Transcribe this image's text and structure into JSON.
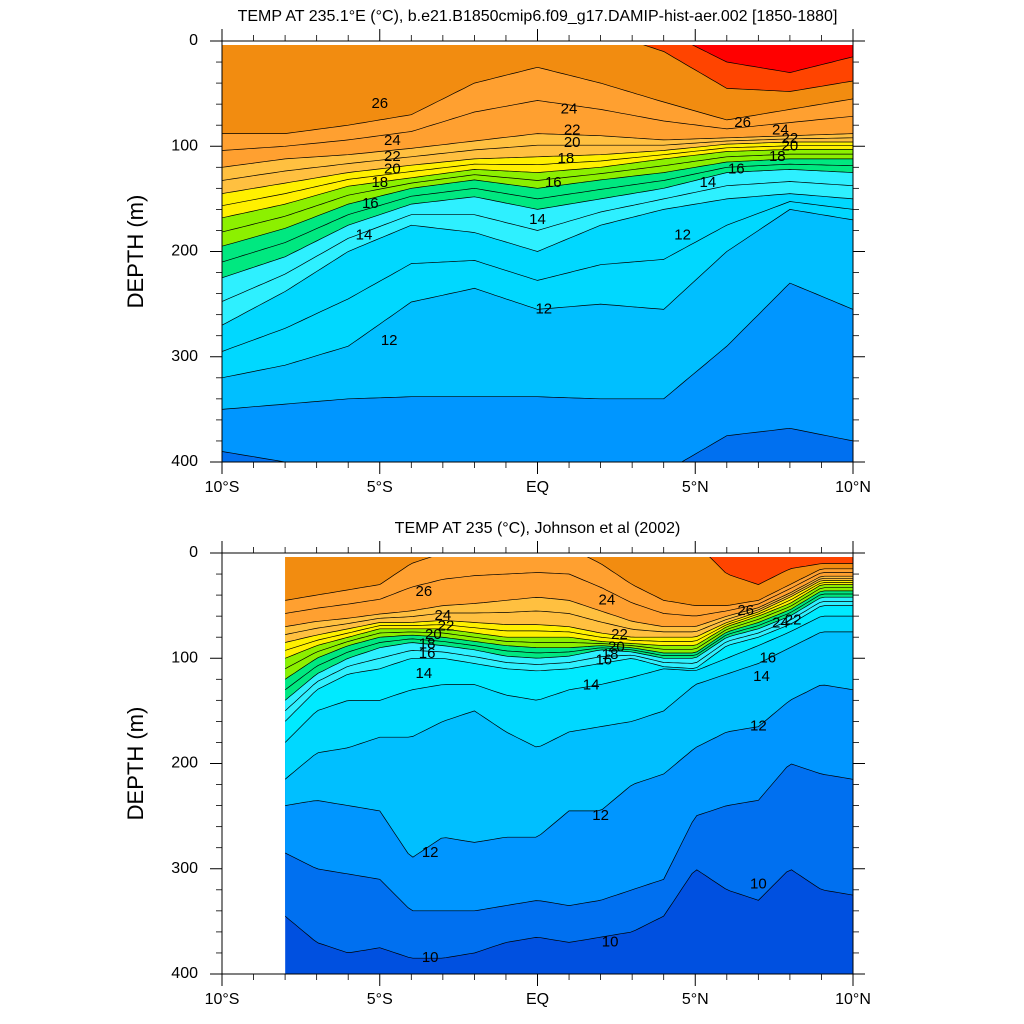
{
  "chart_data": [
    {
      "type": "heatmap",
      "title": "TEMP AT 235.1°E (°C), b.e21.B1850cmip6.f09_g17.DAMIP-hist-aer.002 [1850-1880]",
      "ylabel": "DEPTH (m)",
      "xlabel": "",
      "x_tick_labels": [
        "10°S",
        "5°S",
        "EQ",
        "5°N",
        "10°N"
      ],
      "x_tick_values": [
        -10,
        -5,
        0,
        5,
        10
      ],
      "y_tick_labels": [
        "0",
        "100",
        "200",
        "300",
        "400"
      ],
      "y_tick_values": [
        0,
        100,
        200,
        300,
        400
      ],
      "xlim": [
        -10,
        10
      ],
      "ylim": [
        400,
        0
      ],
      "data_x_range": [
        -10,
        10
      ],
      "contour_interval": 1,
      "bands": [
        {
          "t": 8,
          "color": "#0050e0"
        },
        {
          "t": 9,
          "color": "#0070f0"
        },
        {
          "t": 10,
          "color": "#0096ff"
        },
        {
          "t": 11,
          "color": "#00bfff"
        },
        {
          "t": 12,
          "color": "#00d8ff"
        },
        {
          "t": 13,
          "color": "#00eaff"
        },
        {
          "t": 14,
          "color": "#2ef0ff"
        },
        {
          "t": 15,
          "color": "#00f8e0"
        },
        {
          "t": 16,
          "color": "#00e880"
        },
        {
          "t": 17,
          "color": "#00e800"
        },
        {
          "t": 18,
          "color": "#8cf000"
        },
        {
          "t": 19,
          "color": "#e6f000"
        },
        {
          "t": 20,
          "color": "#fff000"
        },
        {
          "t": 21,
          "color": "#ffd84a"
        },
        {
          "t": 22,
          "color": "#ffc040"
        },
        {
          "t": 23,
          "color": "#ffac38"
        },
        {
          "t": 24,
          "color": "#ffa030"
        },
        {
          "t": 25,
          "color": "#ff9a2a"
        },
        {
          "t": 26,
          "color": "#f28c10"
        },
        {
          "t": 27,
          "color": "#ff4400"
        },
        {
          "t": 28,
          "color": "#ff0000"
        }
      ],
      "isotherm_depths_m": {
        "x": [
          -10,
          -8,
          -6,
          -4,
          -2,
          0,
          2,
          4,
          6,
          8,
          10
        ],
        "10": [
          390,
          400,
          410,
          410,
          410,
          410,
          410,
          410,
          375,
          368,
          380
        ],
        "11": [
          350,
          345,
          340,
          338,
          338,
          338,
          340,
          340,
          290,
          230,
          255
        ],
        "12": [
          320,
          308,
          290,
          248,
          235,
          255,
          250,
          255,
          200,
          160,
          170
        ],
        "14": [
          270,
          238,
          200,
          175,
          182,
          200,
          175,
          160,
          150,
          145,
          150
        ],
        "16": [
          225,
          205,
          175,
          155,
          148,
          160,
          150,
          140,
          125,
          122,
          125
        ],
        "18": [
          195,
          178,
          155,
          140,
          132,
          140,
          132,
          125,
          115,
          112,
          112
        ],
        "20": [
          168,
          155,
          138,
          130,
          122,
          125,
          120,
          112,
          105,
          103,
          103
        ],
        "22": [
          145,
          135,
          125,
          118,
          112,
          110,
          108,
          104,
          98,
          96,
          96
        ],
        "24": [
          120,
          112,
          108,
          102,
          95,
          88,
          90,
          94,
          92,
          90,
          88
        ],
        "26": [
          88,
          88,
          80,
          70,
          40,
          25,
          40,
          58,
          75,
          65,
          55
        ],
        "27": [
          -10,
          -10,
          -10,
          -10,
          -10,
          -10,
          -10,
          10,
          45,
          48,
          38
        ],
        "28": [
          -10,
          -10,
          -10,
          -10,
          -10,
          -10,
          -10,
          -10,
          20,
          30,
          15
        ]
      },
      "contour_labels": [
        {
          "text": "26",
          "x": -5,
          "depth": 60
        },
        {
          "text": "24",
          "x": -4.6,
          "depth": 95
        },
        {
          "text": "22",
          "x": -4.6,
          "depth": 110
        },
        {
          "text": "20",
          "x": -4.6,
          "depth": 122
        },
        {
          "text": "18",
          "x": -5,
          "depth": 135
        },
        {
          "text": "16",
          "x": -5.3,
          "depth": 155
        },
        {
          "text": "14",
          "x": -5.5,
          "depth": 185
        },
        {
          "text": "12",
          "x": -4.7,
          "depth": 285
        },
        {
          "text": "24",
          "x": 1,
          "depth": 65
        },
        {
          "text": "22",
          "x": 1.1,
          "depth": 85
        },
        {
          "text": "20",
          "x": 1.1,
          "depth": 97
        },
        {
          "text": "18",
          "x": 0.9,
          "depth": 112
        },
        {
          "text": "16",
          "x": 0.5,
          "depth": 135
        },
        {
          "text": "14",
          "x": 0,
          "depth": 170
        },
        {
          "text": "12",
          "x": 0.2,
          "depth": 255
        },
        {
          "text": "12",
          "x": 4.6,
          "depth": 185
        },
        {
          "text": "26",
          "x": 6.5,
          "depth": 78
        },
        {
          "text": "24",
          "x": 7.7,
          "depth": 85
        },
        {
          "text": "22",
          "x": 8.0,
          "depth": 93
        },
        {
          "text": "20",
          "x": 8.0,
          "depth": 100
        },
        {
          "text": "18",
          "x": 7.6,
          "depth": 110
        },
        {
          "text": "16",
          "x": 6.3,
          "depth": 122
        },
        {
          "text": "14",
          "x": 5.4,
          "depth": 135
        }
      ]
    },
    {
      "type": "heatmap",
      "title": "TEMP AT 235 (°C), Johnson et al (2002)",
      "ylabel": "DEPTH (m)",
      "xlabel": "",
      "x_tick_labels": [
        "10°S",
        "5°S",
        "EQ",
        "5°N",
        "10°N"
      ],
      "x_tick_values": [
        -10,
        -5,
        0,
        5,
        10
      ],
      "y_tick_labels": [
        "0",
        "100",
        "200",
        "300",
        "400"
      ],
      "y_tick_values": [
        0,
        100,
        200,
        300,
        400
      ],
      "xlim": [
        -10,
        10
      ],
      "ylim": [
        400,
        0
      ],
      "data_x_range": [
        -8,
        10
      ],
      "contour_interval": 1,
      "isotherm_depths_m": {
        "x": [
          -8,
          -7,
          -6,
          -5,
          -4,
          -3,
          -2,
          -1,
          0,
          1,
          2,
          3,
          4,
          5,
          6,
          7,
          8,
          9,
          10
        ],
        "9": [
          345,
          370,
          380,
          375,
          385,
          385,
          380,
          370,
          365,
          370,
          365,
          360,
          345,
          300,
          320,
          330,
          300,
          320,
          325
        ],
        "10": [
          285,
          300,
          305,
          310,
          340,
          340,
          340,
          335,
          330,
          335,
          330,
          320,
          310,
          250,
          240,
          235,
          200,
          210,
          215
        ],
        "11": [
          240,
          235,
          240,
          245,
          290,
          270,
          275,
          270,
          270,
          245,
          245,
          220,
          210,
          185,
          170,
          165,
          140,
          125,
          130
        ],
        "12": [
          215,
          190,
          185,
          175,
          175,
          160,
          150,
          170,
          185,
          170,
          165,
          160,
          150,
          125,
          115,
          105,
          90,
          75,
          75
        ],
        "13": [
          180,
          150,
          140,
          140,
          130,
          125,
          125,
          135,
          140,
          130,
          125,
          118,
          110,
          112,
          100,
          88,
          75,
          60,
          60
        ],
        "14": [
          160,
          130,
          115,
          110,
          100,
          100,
          105,
          110,
          112,
          110,
          105,
          100,
          108,
          110,
          88,
          80,
          68,
          50,
          50
        ],
        "16": [
          140,
          115,
          100,
          90,
          85,
          88,
          92,
          98,
          100,
          98,
          92,
          94,
          100,
          100,
          80,
          72,
          60,
          42,
          42
        ],
        "18": [
          120,
          100,
          88,
          80,
          78,
          80,
          84,
          88,
          90,
          90,
          88,
          90,
          95,
          95,
          75,
          66,
          54,
          36,
          36
        ],
        "20": [
          100,
          88,
          80,
          72,
          72,
          72,
          76,
          80,
          80,
          80,
          84,
          86,
          88,
          88,
          70,
          60,
          48,
          30,
          30
        ],
        "22": [
          85,
          78,
          72,
          66,
          66,
          64,
          66,
          68,
          68,
          70,
          76,
          80,
          80,
          80,
          66,
          56,
          42,
          26,
          26
        ],
        "24": [
          70,
          65,
          62,
          58,
          55,
          50,
          48,
          45,
          42,
          45,
          55,
          65,
          70,
          70,
          60,
          52,
          38,
          22,
          22
        ],
        "26": [
          45,
          40,
          35,
          30,
          10,
          0,
          -5,
          -5,
          -5,
          -5,
          10,
          30,
          45,
          50,
          50,
          45,
          30,
          15,
          15
        ],
        "27": [
          -10,
          -10,
          -10,
          -10,
          -10,
          -10,
          -10,
          -10,
          -10,
          -10,
          -10,
          -10,
          -10,
          -10,
          20,
          30,
          15,
          10,
          10
        ]
      },
      "contour_labels": [
        {
          "text": "26",
          "x": -3.6,
          "depth": 37
        },
        {
          "text": "24",
          "x": -3.0,
          "depth": 60
        },
        {
          "text": "22",
          "x": -2.9,
          "depth": 70
        },
        {
          "text": "20",
          "x": -3.3,
          "depth": 78
        },
        {
          "text": "18",
          "x": -3.5,
          "depth": 87
        },
        {
          "text": "16",
          "x": -3.5,
          "depth": 96
        },
        {
          "text": "14",
          "x": -3.6,
          "depth": 115
        },
        {
          "text": "12",
          "x": -3.4,
          "depth": 285
        },
        {
          "text": "10",
          "x": -3.4,
          "depth": 385
        },
        {
          "text": "24",
          "x": 2.2,
          "depth": 45
        },
        {
          "text": "22",
          "x": 2.6,
          "depth": 78
        },
        {
          "text": "20",
          "x": 2.5,
          "depth": 90
        },
        {
          "text": "18",
          "x": 2.3,
          "depth": 97
        },
        {
          "text": "16",
          "x": 2.1,
          "depth": 102
        },
        {
          "text": "14",
          "x": 1.7,
          "depth": 126
        },
        {
          "text": "12",
          "x": 2.0,
          "depth": 250
        },
        {
          "text": "10",
          "x": 2.3,
          "depth": 370
        },
        {
          "text": "26",
          "x": 6.6,
          "depth": 55
        },
        {
          "text": "24",
          "x": 7.7,
          "depth": 67
        },
        {
          "text": "22",
          "x": 8.1,
          "depth": 64
        },
        {
          "text": "16",
          "x": 7.3,
          "depth": 100
        },
        {
          "text": "14",
          "x": 7.1,
          "depth": 118
        },
        {
          "text": "12",
          "x": 7.0,
          "depth": 165
        },
        {
          "text": "10",
          "x": 7.0,
          "depth": 315
        }
      ]
    }
  ]
}
